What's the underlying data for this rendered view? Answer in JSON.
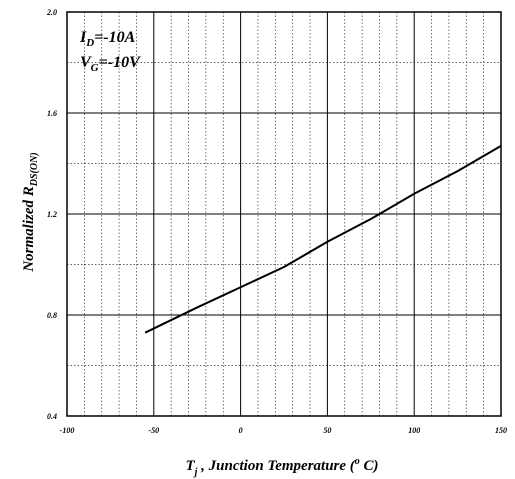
{
  "chart_data": {
    "type": "line",
    "xlabel": {
      "main": "T",
      "sub": "j",
      "rest": " , Junction Temperature (",
      "sup": "o",
      "end": " C)"
    },
    "ylabel": {
      "main": "Normalized R",
      "sub": "DS(ON)"
    },
    "xlim": [
      -100,
      150
    ],
    "ylim": [
      0.4,
      2.0
    ],
    "x_ticks": [
      -100,
      -50,
      0,
      50,
      100,
      150
    ],
    "x_tick_labels": [
      "-100",
      "-50",
      "0",
      "50",
      "100",
      "150"
    ],
    "y_ticks": [
      0.4,
      0.8,
      1.2,
      1.6,
      2.0
    ],
    "y_tick_labels": [
      "0.4",
      "0.8",
      "1.2",
      "1.6",
      "2.0"
    ],
    "grid": true,
    "annotations": [
      {
        "main": "I",
        "sub": "D",
        "rest": "=-10A"
      },
      {
        "main": "V",
        "sub": "G",
        "rest": "=-10V"
      }
    ],
    "series": [
      {
        "x": [
          -55,
          -25,
          0,
          25,
          50,
          75,
          100,
          125,
          150
        ],
        "y": [
          0.73,
          0.83,
          0.91,
          0.99,
          1.09,
          1.18,
          1.28,
          1.37,
          1.47
        ]
      }
    ]
  }
}
